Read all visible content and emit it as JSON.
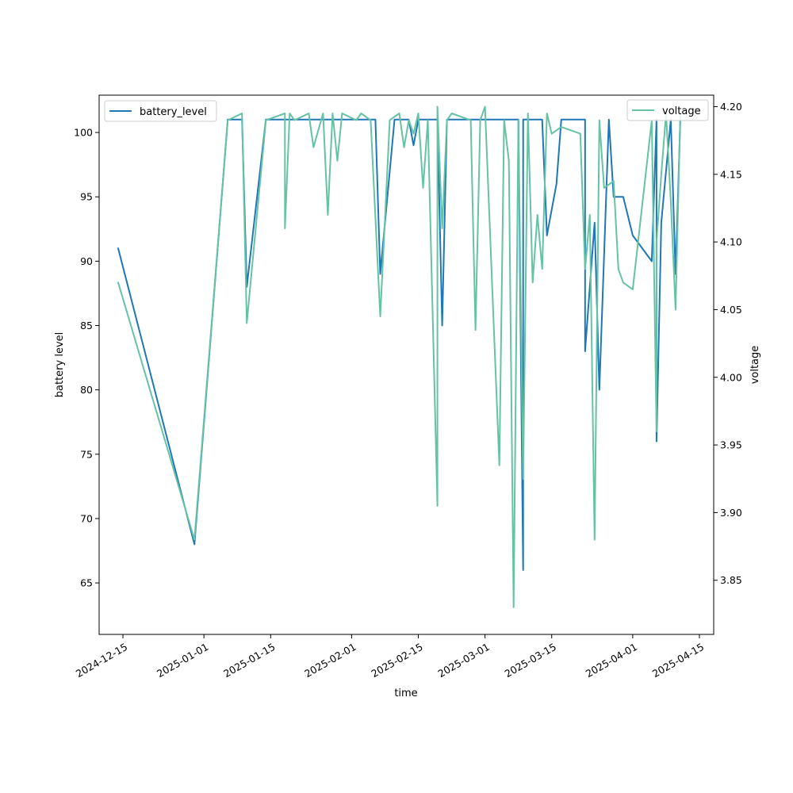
{
  "chart_data": {
    "type": "line",
    "xlabel": "time",
    "ylabel_left": "battery level",
    "ylabel_right": "voltage",
    "x_range": [
      "2024-12-10",
      "2025-04-18"
    ],
    "ylim_left": [
      61,
      102.9
    ],
    "ylim_right": [
      3.81,
      4.2085
    ],
    "x_ticks": [
      "2024-12-15",
      "2025-01-01",
      "2025-01-15",
      "2025-02-01",
      "2025-02-15",
      "2025-03-01",
      "2025-03-15",
      "2025-04-01",
      "2025-04-15"
    ],
    "y_ticks_left": [
      65,
      70,
      75,
      80,
      85,
      90,
      95,
      100
    ],
    "y_ticks_right": [
      "3.85",
      "3.90",
      "3.95",
      "4.00",
      "4.05",
      "4.10",
      "4.15",
      "4.20"
    ],
    "legend_left_position": "upper-left",
    "legend_right_position": "upper-right",
    "grid": false,
    "series": [
      {
        "name": "battery_level",
        "axis": "left",
        "color": "#1f77b4",
        "x": [
          "2024-12-14",
          "2024-12-30",
          "2025-01-06",
          "2025-01-09",
          "2025-01-10",
          "2025-01-14",
          "2025-01-18",
          "2025-01-18",
          "2025-01-24",
          "2025-01-27",
          "2025-01-28",
          "2025-01-29",
          "2025-01-30",
          "2025-02-03",
          "2025-02-06",
          "2025-02-07",
          "2025-02-10",
          "2025-02-13",
          "2025-02-14",
          "2025-02-15",
          "2025-02-16",
          "2025-02-19",
          "2025-02-20",
          "2025-02-21",
          "2025-02-22",
          "2025-02-23",
          "2025-02-25",
          "2025-02-28",
          "2025-03-01",
          "2025-03-02",
          "2025-03-05",
          "2025-03-06",
          "2025-03-07",
          "2025-03-08",
          "2025-03-09",
          "2025-03-09",
          "2025-03-12",
          "2025-03-13",
          "2025-03-14",
          "2025-03-16",
          "2025-03-17",
          "2025-03-22",
          "2025-03-22",
          "2025-03-24",
          "2025-03-25",
          "2025-03-27",
          "2025-03-28",
          "2025-03-30",
          "2025-04-01",
          "2025-04-05",
          "2025-04-06",
          "2025-04-06",
          "2025-04-07",
          "2025-04-09",
          "2025-04-10",
          "2025-04-11"
        ],
        "y": [
          91,
          68,
          101,
          101,
          88,
          101,
          101,
          101,
          101,
          101,
          101,
          101,
          101,
          101,
          101,
          89,
          101,
          101,
          99,
          101,
          101,
          101,
          85,
          101,
          101,
          101,
          101,
          101,
          101,
          101,
          101,
          101,
          101,
          101,
          66,
          101,
          101,
          101,
          92,
          96,
          101,
          101,
          83,
          93,
          80,
          101,
          95,
          95,
          92,
          90,
          101,
          76,
          93,
          101,
          89,
          101
        ]
      },
      {
        "name": "voltage",
        "axis": "right",
        "color": "#66c2a5",
        "x": [
          "2024-12-14",
          "2024-12-30",
          "2025-01-06",
          "2025-01-09",
          "2025-01-10",
          "2025-01-14",
          "2025-01-18",
          "2025-01-18",
          "2025-01-19",
          "2025-01-20",
          "2025-01-23",
          "2025-01-24",
          "2025-01-26",
          "2025-01-27",
          "2025-01-28",
          "2025-01-29",
          "2025-01-30",
          "2025-02-02",
          "2025-02-03",
          "2025-02-05",
          "2025-02-07",
          "2025-02-09",
          "2025-02-11",
          "2025-02-12",
          "2025-02-13",
          "2025-02-14",
          "2025-02-15",
          "2025-02-16",
          "2025-02-17",
          "2025-02-19",
          "2025-02-19",
          "2025-02-20",
          "2025-02-21",
          "2025-02-22",
          "2025-02-26",
          "2025-02-27",
          "2025-02-28",
          "2025-03-01",
          "2025-03-04",
          "2025-03-05",
          "2025-03-06",
          "2025-03-07",
          "2025-03-08",
          "2025-03-09",
          "2025-03-10",
          "2025-03-11",
          "2025-03-12",
          "2025-03-13",
          "2025-03-14",
          "2025-03-15",
          "2025-03-17",
          "2025-03-21",
          "2025-03-22",
          "2025-03-23",
          "2025-03-24",
          "2025-03-25",
          "2025-03-26",
          "2025-03-28",
          "2025-03-29",
          "2025-03-30",
          "2025-04-01",
          "2025-04-05",
          "2025-04-06",
          "2025-04-06",
          "2025-04-07",
          "2025-04-08",
          "2025-04-09",
          "2025-04-10",
          "2025-04-11"
        ],
        "y": [
          4.07,
          3.88,
          4.19,
          4.195,
          4.04,
          4.19,
          4.195,
          4.11,
          4.195,
          4.19,
          4.195,
          4.17,
          4.195,
          4.12,
          4.195,
          4.16,
          4.195,
          4.19,
          4.195,
          4.19,
          4.045,
          4.19,
          4.195,
          4.17,
          4.19,
          4.18,
          4.195,
          4.14,
          4.19,
          3.905,
          4.2,
          4.11,
          4.19,
          4.195,
          4.19,
          4.035,
          4.19,
          4.2,
          3.935,
          4.19,
          4.16,
          3.83,
          4.19,
          3.925,
          4.195,
          4.07,
          4.12,
          4.08,
          4.195,
          4.18,
          4.185,
          4.18,
          4.08,
          4.12,
          3.88,
          4.19,
          4.14,
          4.145,
          4.08,
          4.07,
          4.065,
          4.19,
          3.96,
          4.1,
          4.15,
          4.195,
          4.13,
          4.05,
          4.195
        ]
      }
    ]
  }
}
